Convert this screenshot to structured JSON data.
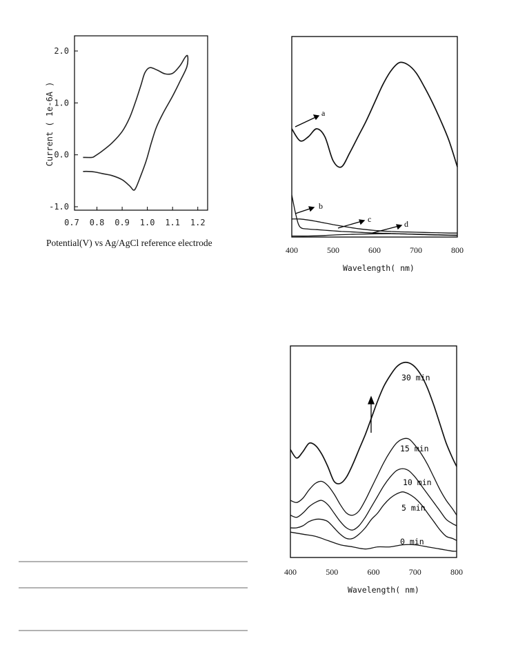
{
  "cv": {
    "ylabel": "Current ( 1e-6A )",
    "xlabel": "Potential(V) vs Ag/AgCl reference electrode",
    "yticks": [
      {
        "v": 2.0,
        "label": "2.0"
      },
      {
        "v": 1.0,
        "label": "1.0"
      },
      {
        "v": 0.0,
        "label": "0.0"
      },
      {
        "v": -1.0,
        "label": "-1.0"
      }
    ],
    "xticks": [
      {
        "v": 0.7,
        "label": "0.7"
      },
      {
        "v": 0.8,
        "label": "0.8"
      },
      {
        "v": 0.9,
        "label": "0.9"
      },
      {
        "v": 1.0,
        "label": "1.0"
      },
      {
        "v": 1.1,
        "label": "1.1"
      },
      {
        "v": 1.2,
        "label": "1.2"
      }
    ]
  },
  "uv1": {
    "xlabel": "Wavelength( nm)",
    "xticks": [
      {
        "v": 400,
        "label": "400"
      },
      {
        "v": 500,
        "label": "500"
      },
      {
        "v": 600,
        "label": "600"
      },
      {
        "v": 700,
        "label": "700"
      },
      {
        "v": 800,
        "label": "800"
      }
    ],
    "curve_labels": [
      "a",
      "b",
      "c",
      "d"
    ]
  },
  "uv2": {
    "xlabel": "Wavelength( nm)",
    "xticks": [
      {
        "v": 400,
        "label": "400"
      },
      {
        "v": 500,
        "label": "500"
      },
      {
        "v": 600,
        "label": "600"
      },
      {
        "v": 700,
        "label": "700"
      },
      {
        "v": 800,
        "label": "800"
      }
    ],
    "curve_labels": [
      "30 min",
      "15 min",
      "10 min",
      "5 min",
      "0 min"
    ]
  },
  "chart_data": [
    {
      "type": "line",
      "title": "",
      "xlabel": "Potential(V) vs Ag/AgCl reference electrode",
      "ylabel": "Current ( 1e-6A )",
      "xlim": [
        0.7,
        1.25
      ],
      "ylim": [
        -1.0,
        2.0
      ],
      "grid": false,
      "series": [
        {
          "x": [
            0.745,
            0.78,
            0.79,
            0.82,
            0.86,
            0.9,
            0.93,
            0.955,
            0.975,
            0.99,
            1.01,
            1.04,
            1.07,
            1.1,
            1.13,
            1.15,
            1.16,
            1.157,
            1.13,
            1.1,
            1.06,
            1.035,
            1.015,
            0.995,
            0.97,
            0.955,
            0.945,
            0.93,
            0.9,
            0.86,
            0.82,
            0.79,
            0.765,
            0.745
          ],
          "y": [
            -0.05,
            -0.05,
            -0.03,
            0.07,
            0.23,
            0.45,
            0.72,
            1.05,
            1.35,
            1.58,
            1.68,
            1.63,
            1.56,
            1.57,
            1.72,
            1.88,
            1.9,
            1.7,
            1.42,
            1.13,
            0.78,
            0.52,
            0.22,
            -0.12,
            -0.45,
            -0.63,
            -0.68,
            -0.6,
            -0.48,
            -0.4,
            -0.36,
            -0.33,
            -0.32,
            -0.32
          ]
        }
      ]
    },
    {
      "type": "line",
      "title": "",
      "xlabel": "Wavelength( nm)",
      "ylabel": "",
      "xlim": [
        400,
        800
      ],
      "ylim": [
        0,
        1.0
      ],
      "grid": false,
      "series": [
        {
          "name": "a",
          "x": [
            400,
            420,
            440,
            460,
            480,
            500,
            520,
            540,
            560,
            580,
            600,
            620,
            640,
            660,
            680,
            700,
            720,
            740,
            760,
            780,
            800
          ],
          "y": [
            0.54,
            0.48,
            0.5,
            0.54,
            0.5,
            0.38,
            0.35,
            0.42,
            0.5,
            0.58,
            0.67,
            0.76,
            0.83,
            0.87,
            0.86,
            0.82,
            0.75,
            0.67,
            0.58,
            0.48,
            0.35
          ]
        },
        {
          "name": "b",
          "x": [
            400,
            410,
            420,
            440,
            460,
            480,
            500,
            520,
            540,
            560,
            580,
            600,
            620,
            640,
            660,
            680,
            700,
            720,
            740,
            760,
            780,
            800
          ],
          "y": [
            0.21,
            0.11,
            0.05,
            0.04,
            0.037,
            0.034,
            0.031,
            0.028,
            0.026,
            0.024,
            0.022,
            0.02,
            0.019,
            0.018,
            0.016,
            0.015,
            0.014,
            0.013,
            0.012,
            0.011,
            0.01,
            0.01
          ]
        },
        {
          "name": "c",
          "x": [
            400,
            420,
            440,
            460,
            480,
            500,
            520,
            540,
            560,
            580,
            600,
            620,
            640,
            660,
            680,
            700,
            720,
            740,
            760,
            780,
            800
          ],
          "y": [
            0.09,
            0.09,
            0.085,
            0.078,
            0.07,
            0.062,
            0.055,
            0.048,
            0.042,
            0.037,
            0.033,
            0.03,
            0.028,
            0.026,
            0.025,
            0.024,
            0.023,
            0.022,
            0.021,
            0.02,
            0.02
          ]
        },
        {
          "name": "d",
          "x": [
            400,
            440,
            480,
            520,
            560,
            600,
            640,
            680,
            720,
            760,
            800
          ],
          "y": [
            0.005,
            0.005,
            0.008,
            0.012,
            0.014,
            0.016,
            0.017,
            0.015,
            0.012,
            0.01,
            0.008
          ]
        }
      ]
    },
    {
      "type": "line",
      "title": "",
      "xlabel": "Wavelength( nm)",
      "ylabel": "",
      "xlim": [
        400,
        800
      ],
      "ylim": [
        0,
        1.0
      ],
      "grid": false,
      "series": [
        {
          "name": "30 min",
          "x": [
            400,
            415,
            430,
            445,
            460,
            475,
            490,
            505,
            520,
            535,
            550,
            565,
            580,
            595,
            610,
            625,
            640,
            655,
            670,
            685,
            700,
            715,
            730,
            745,
            760,
            775,
            790,
            800
          ],
          "y": [
            0.51,
            0.47,
            0.5,
            0.54,
            0.53,
            0.49,
            0.43,
            0.36,
            0.35,
            0.38,
            0.44,
            0.51,
            0.58,
            0.66,
            0.74,
            0.81,
            0.86,
            0.9,
            0.92,
            0.92,
            0.9,
            0.86,
            0.8,
            0.72,
            0.63,
            0.54,
            0.47,
            0.43
          ]
        },
        {
          "name": "15 min",
          "x": [
            400,
            415,
            430,
            445,
            460,
            475,
            490,
            505,
            520,
            535,
            550,
            565,
            580,
            595,
            610,
            625,
            640,
            655,
            670,
            685,
            700,
            715,
            730,
            745,
            760,
            775,
            790,
            800
          ],
          "y": [
            0.27,
            0.26,
            0.28,
            0.32,
            0.35,
            0.36,
            0.34,
            0.3,
            0.25,
            0.21,
            0.2,
            0.22,
            0.27,
            0.33,
            0.39,
            0.45,
            0.5,
            0.54,
            0.56,
            0.56,
            0.53,
            0.49,
            0.44,
            0.38,
            0.32,
            0.27,
            0.23,
            0.2
          ]
        },
        {
          "name": "10 min",
          "x": [
            400,
            415,
            430,
            445,
            460,
            475,
            490,
            505,
            520,
            535,
            550,
            565,
            580,
            595,
            610,
            625,
            640,
            655,
            670,
            685,
            700,
            715,
            730,
            745,
            760,
            775,
            790,
            800
          ],
          "y": [
            0.2,
            0.19,
            0.21,
            0.24,
            0.26,
            0.27,
            0.25,
            0.21,
            0.17,
            0.14,
            0.13,
            0.15,
            0.19,
            0.24,
            0.29,
            0.34,
            0.38,
            0.41,
            0.42,
            0.41,
            0.38,
            0.34,
            0.3,
            0.26,
            0.22,
            0.18,
            0.16,
            0.15
          ]
        },
        {
          "name": "5 min",
          "x": [
            400,
            415,
            430,
            445,
            460,
            475,
            490,
            505,
            520,
            535,
            550,
            565,
            580,
            595,
            610,
            625,
            640,
            655,
            670,
            685,
            700,
            715,
            730,
            745,
            760,
            775,
            790,
            800
          ],
          "y": [
            0.14,
            0.14,
            0.15,
            0.17,
            0.18,
            0.18,
            0.17,
            0.14,
            0.11,
            0.09,
            0.09,
            0.11,
            0.14,
            0.18,
            0.21,
            0.25,
            0.28,
            0.3,
            0.31,
            0.3,
            0.28,
            0.25,
            0.21,
            0.17,
            0.13,
            0.1,
            0.09,
            0.08
          ]
        },
        {
          "name": "0 min",
          "x": [
            400,
            430,
            460,
            490,
            520,
            550,
            580,
            610,
            640,
            670,
            700,
            730,
            760,
            790,
            800
          ],
          "y": [
            0.12,
            0.11,
            0.1,
            0.08,
            0.06,
            0.05,
            0.04,
            0.05,
            0.05,
            0.06,
            0.06,
            0.05,
            0.04,
            0.03,
            0.03
          ]
        }
      ]
    }
  ]
}
